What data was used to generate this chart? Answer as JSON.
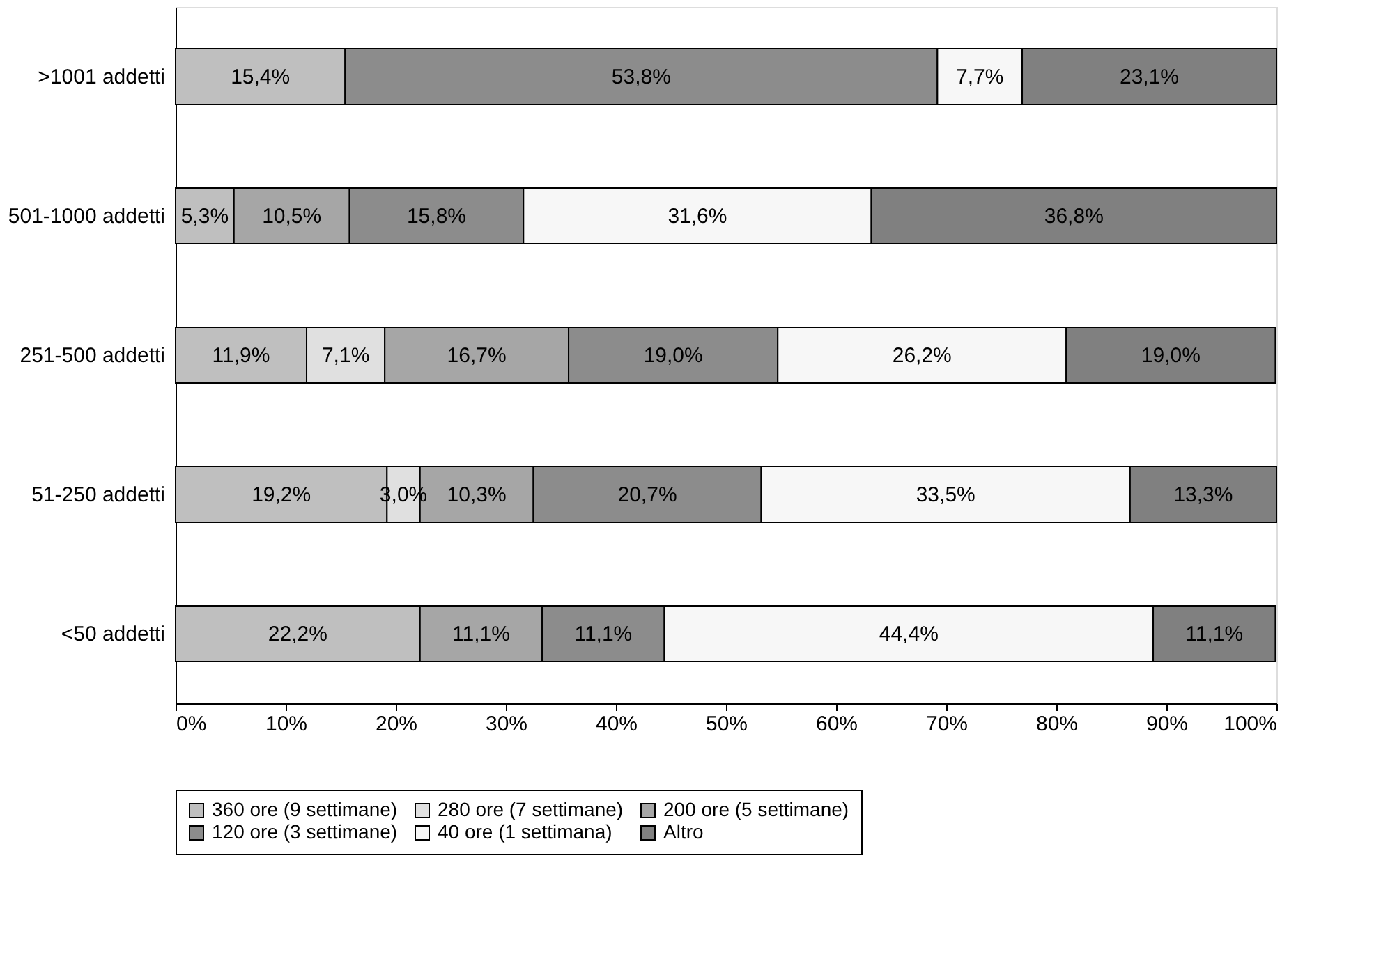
{
  "chart_data": {
    "type": "bar",
    "orientation": "horizontal",
    "stacked": true,
    "categories": [
      ">1001 addetti",
      "501-1000 addetti",
      "251-500 addetti",
      "51-250 addetti",
      "<50 addetti"
    ],
    "series": [
      {
        "name": "360 ore (9 settimane)",
        "color": "#bfbfbf",
        "values": [
          15.4,
          5.3,
          11.9,
          19.2,
          22.2
        ],
        "value_labels": [
          "15,4%",
          "5,3%",
          "11,9%",
          "19,2%",
          "22,2%"
        ]
      },
      {
        "name": "280 ore (7 settimane)",
        "color": "#e0e0e0",
        "values": [
          null,
          null,
          7.1,
          3.0,
          null
        ],
        "value_labels": [
          null,
          null,
          "7,1%",
          "3,0%",
          null
        ]
      },
      {
        "name": "200 ore (5 settimane)",
        "color": "#a6a6a6",
        "values": [
          null,
          10.5,
          16.7,
          10.3,
          11.1
        ],
        "value_labels": [
          null,
          "10,5%",
          "16,7%",
          "10,3%",
          "11,1%"
        ]
      },
      {
        "name": "120 ore (3 settimane)",
        "color": "#8c8c8c",
        "values": [
          53.8,
          15.8,
          19.0,
          20.7,
          11.1
        ],
        "value_labels": [
          "53,8%",
          "15,8%",
          "19,0%",
          "20,7%",
          "11,1%"
        ]
      },
      {
        "name": "40 ore (1 settimana)",
        "color": "#f7f7f7",
        "values": [
          7.7,
          31.6,
          26.2,
          33.5,
          44.4
        ],
        "value_labels": [
          "7,7%",
          "31,6%",
          "26,2%",
          "33,5%",
          "44,4%"
        ]
      },
      {
        "name": "Altro",
        "color": "#808080",
        "values": [
          23.1,
          36.8,
          19.0,
          13.3,
          11.1
        ],
        "value_labels": [
          "23,1%",
          "36,8%",
          "19,0%",
          "13,3%",
          "11,1%"
        ]
      }
    ],
    "xlim": [
      0,
      100
    ],
    "xticks": [
      {
        "value": 0,
        "label": "0%"
      },
      {
        "value": 10,
        "label": "10%"
      },
      {
        "value": 20,
        "label": "20%"
      },
      {
        "value": 30,
        "label": "30%"
      },
      {
        "value": 40,
        "label": "40%"
      },
      {
        "value": 50,
        "label": "50%"
      },
      {
        "value": 60,
        "label": "60%"
      },
      {
        "value": 70,
        "label": "70%"
      },
      {
        "value": 80,
        "label": "80%"
      },
      {
        "value": 90,
        "label": "90%"
      },
      {
        "value": 100,
        "label": "100%"
      }
    ],
    "grid": false,
    "legend": "bottom"
  }
}
